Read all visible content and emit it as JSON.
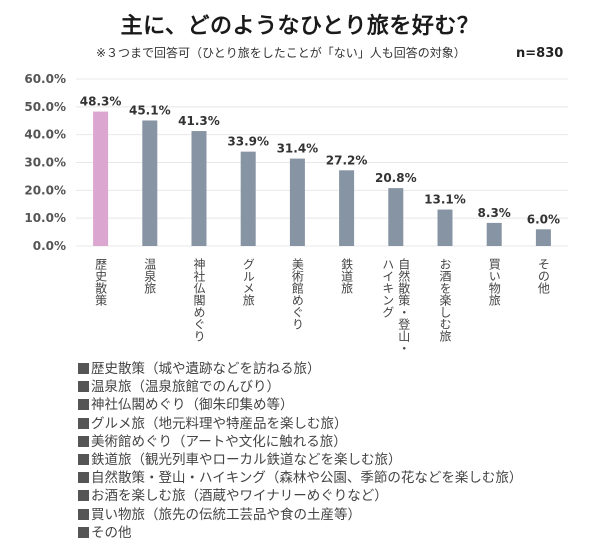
{
  "header": {
    "title": "主に、どのようなひとり旅を好む？",
    "subtitle": "※３つまで回答可（ひとり旅をしたことが「ない」人も回答の対象）",
    "sample_size": "n=830"
  },
  "colors": {
    "highlight_bar": "#dba6cf",
    "bar": "#8794a3",
    "gridline": "#e8e8e8",
    "axis_text": "#555555",
    "value_text": "#333333"
  },
  "chart_data": {
    "type": "bar",
    "title": "主に、どのようなひとり旅を好む？",
    "xlabel": "",
    "ylabel": "",
    "ylim": [
      0,
      60
    ],
    "yticks": [
      "0.0%",
      "10.0%",
      "20.0%",
      "30.0%",
      "40.0%",
      "50.0%",
      "60.0%"
    ],
    "ytick_values": [
      0,
      10,
      20,
      30,
      40,
      50,
      60
    ],
    "grid": true,
    "legend": "none",
    "categories": [
      "歴史散策",
      "温泉旅",
      "神社仏閣めぐり",
      "グルメ旅",
      "美術館めぐり",
      "鉄道旅",
      "自然散策・登山・ハイキング",
      "お酒を楽しむ旅",
      "買い物旅",
      "その他"
    ],
    "category_label_lines": [
      [
        "歴史散策"
      ],
      [
        "温泉旅"
      ],
      [
        "神社仏閣めぐり"
      ],
      [
        "グルメ旅"
      ],
      [
        "美術館めぐり"
      ],
      [
        "鉄道旅"
      ],
      [
        "自然散策・登山・",
        "ハイキング"
      ],
      [
        "お酒を楽しむ旅"
      ],
      [
        "買い物旅"
      ],
      [
        "その他"
      ]
    ],
    "values": [
      48.3,
      45.1,
      41.3,
      33.9,
      31.4,
      27.2,
      20.8,
      13.1,
      8.3,
      6.0
    ],
    "value_labels": [
      "48.3%",
      "45.1%",
      "41.3%",
      "33.9%",
      "31.4%",
      "27.2%",
      "20.8%",
      "13.1%",
      "8.3%",
      "6.0%"
    ],
    "highlight_index": 0
  },
  "legend_notes": [
    "歴史散策（城や遺跡などを訪ねる旅）",
    "温泉旅（温泉旅館でのんびり）",
    "神社仏閣めぐり（御朱印集め等）",
    "グルメ旅（地元料理や特産品を楽しむ旅）",
    "美術館めぐり（アートや文化に触れる旅）",
    "鉄道旅（観光列車やローカル鉄道などを楽しむ旅）",
    "自然散策・登山・ハイキング（森林や公園、季節の花などを楽しむ旅）",
    "お酒を楽しむ旅（酒蔵やワイナリーめぐりなど）",
    "買い物旅（旅先の伝統工芸品や食の土産等）",
    "その他"
  ]
}
